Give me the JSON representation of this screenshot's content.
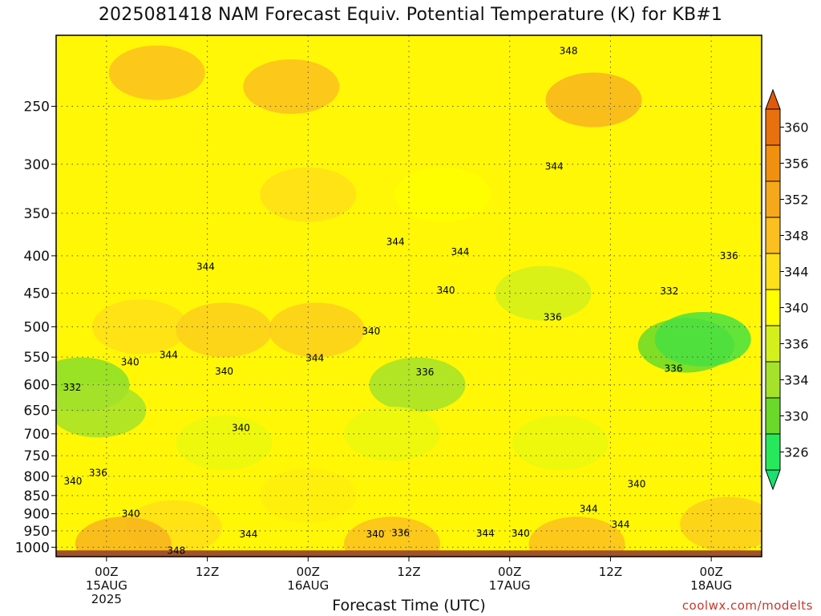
{
  "title": "2025081418 NAM Forecast Equiv. Potential Temperature (K) for KB#1",
  "xlabel": "Forecast Time (UTC)",
  "credit": "coolwx.com/modelts",
  "colors": {
    "ground": "#a0522d",
    "frame": "#000000",
    "gridline": "#555555"
  },
  "chart_data": {
    "type": "heatmap",
    "title": "2025081418 NAM Forecast Equiv. Potential Temperature (K) for KB#1",
    "xlabel": "Forecast Time (UTC)",
    "ylabel": "",
    "x_ticks": [
      {
        "hour": 6,
        "line1": "00Z",
        "line2": "15AUG",
        "line3": "2025"
      },
      {
        "hour": 18,
        "line1": "12Z",
        "line2": "",
        "line3": ""
      },
      {
        "hour": 30,
        "line1": "00Z",
        "line2": "16AUG",
        "line3": ""
      },
      {
        "hour": 42,
        "line1": "12Z",
        "line2": "",
        "line3": ""
      },
      {
        "hour": 54,
        "line1": "00Z",
        "line2": "17AUG",
        "line3": ""
      },
      {
        "hour": 66,
        "line1": "12Z",
        "line2": "",
        "line3": ""
      },
      {
        "hour": 78,
        "line1": "00Z",
        "line2": "18AUG",
        "line3": ""
      }
    ],
    "xlim_hours": [
      0,
      84
    ],
    "y_ticks_hpa": [
      250,
      300,
      350,
      400,
      450,
      500,
      550,
      600,
      650,
      700,
      750,
      800,
      850,
      900,
      950,
      1000
    ],
    "ylim_hpa": [
      200,
      1030
    ],
    "ground_from_hpa": 1010,
    "y_scale": "log-pressure",
    "grid": true,
    "colorbar": {
      "labels": [
        "360",
        "356",
        "352",
        "348",
        "344",
        "340",
        "336",
        "334",
        "330",
        "326"
      ],
      "levels": [
        360,
        356,
        352,
        348,
        344,
        340,
        336,
        334,
        330,
        326
      ],
      "colors": [
        "#e8700d",
        "#f0900e",
        "#f5a81a",
        "#fbbf1f",
        "#ffdf19",
        "#ffff00",
        "#d4f01c",
        "#a5e22a",
        "#6ad92a",
        "#26e85a"
      ],
      "over_color": "#e05a0a",
      "under_color": "#19e070"
    },
    "contour_labels": [
      {
        "text": "348",
        "hour": 61.0,
        "hpa": 210
      },
      {
        "text": "344",
        "hour": 59.3,
        "hpa": 302
      },
      {
        "text": "344",
        "hour": 40.4,
        "hpa": 383
      },
      {
        "text": "344",
        "hour": 48.1,
        "hpa": 395
      },
      {
        "text": "344",
        "hour": 17.8,
        "hpa": 414
      },
      {
        "text": "336",
        "hour": 80.1,
        "hpa": 400
      },
      {
        "text": "332",
        "hour": 73.0,
        "hpa": 447
      },
      {
        "text": "340",
        "hour": 46.4,
        "hpa": 446
      },
      {
        "text": "336",
        "hour": 59.1,
        "hpa": 485
      },
      {
        "text": "340",
        "hour": 37.5,
        "hpa": 507
      },
      {
        "text": "344",
        "hour": 13.4,
        "hpa": 546
      },
      {
        "text": "340",
        "hour": 8.8,
        "hpa": 559
      },
      {
        "text": "344",
        "hour": 30.8,
        "hpa": 552
      },
      {
        "text": "340",
        "hour": 20.0,
        "hpa": 575
      },
      {
        "text": "336",
        "hour": 43.9,
        "hpa": 577
      },
      {
        "text": "336",
        "hour": 73.5,
        "hpa": 570
      },
      {
        "text": "332",
        "hour": 1.9,
        "hpa": 605
      },
      {
        "text": "340",
        "hour": 22.0,
        "hpa": 687
      },
      {
        "text": "336",
        "hour": 5.0,
        "hpa": 791
      },
      {
        "text": "340",
        "hour": 2.0,
        "hpa": 813
      },
      {
        "text": "340",
        "hour": 69.1,
        "hpa": 820
      },
      {
        "text": "340",
        "hour": 8.9,
        "hpa": 900
      },
      {
        "text": "344",
        "hour": 63.4,
        "hpa": 887
      },
      {
        "text": "344",
        "hour": 67.2,
        "hpa": 931
      },
      {
        "text": "344",
        "hour": 22.9,
        "hpa": 960
      },
      {
        "text": "340",
        "hour": 38.0,
        "hpa": 960
      },
      {
        "text": "336",
        "hour": 41.0,
        "hpa": 956
      },
      {
        "text": "344",
        "hour": 51.1,
        "hpa": 957
      },
      {
        "text": "340",
        "hour": 55.3,
        "hpa": 957
      },
      {
        "text": "348",
        "hour": 14.3,
        "hpa": 1011
      }
    ],
    "regions": [
      {
        "value": 348,
        "hour": 12.0,
        "hpa": 225
      },
      {
        "value": 348,
        "hour": 28.0,
        "hpa": 235
      },
      {
        "value": 350,
        "hour": 64.0,
        "hpa": 245
      },
      {
        "value": 340,
        "hour": 46.0,
        "hpa": 330
      },
      {
        "value": 344,
        "hour": 30.0,
        "hpa": 330
      },
      {
        "value": 332,
        "hour": 3.0,
        "hpa": 600
      },
      {
        "value": 334,
        "hour": 5.0,
        "hpa": 650
      },
      {
        "value": 334,
        "hour": 43.0,
        "hpa": 600
      },
      {
        "value": 330,
        "hour": 75.0,
        "hpa": 530
      },
      {
        "value": 328,
        "hour": 77.0,
        "hpa": 520
      },
      {
        "value": 336,
        "hour": 58.0,
        "hpa": 450
      },
      {
        "value": 338,
        "hour": 40.0,
        "hpa": 700
      },
      {
        "value": 338,
        "hour": 60.0,
        "hpa": 720
      },
      {
        "value": 338,
        "hour": 20.0,
        "hpa": 720
      },
      {
        "value": 342,
        "hour": 30.0,
        "hpa": 850
      },
      {
        "value": 344,
        "hour": 10.0,
        "hpa": 500
      },
      {
        "value": 346,
        "hour": 20.0,
        "hpa": 505
      },
      {
        "value": 346,
        "hour": 31.0,
        "hpa": 505
      },
      {
        "value": 344,
        "hour": 14.0,
        "hpa": 940
      },
      {
        "value": 346,
        "hour": 80.0,
        "hpa": 930
      },
      {
        "value": 350,
        "hour": 8.0,
        "hpa": 990
      },
      {
        "value": 348,
        "hour": 40.0,
        "hpa": 990
      },
      {
        "value": 348,
        "hour": 62.0,
        "hpa": 990
      }
    ]
  }
}
